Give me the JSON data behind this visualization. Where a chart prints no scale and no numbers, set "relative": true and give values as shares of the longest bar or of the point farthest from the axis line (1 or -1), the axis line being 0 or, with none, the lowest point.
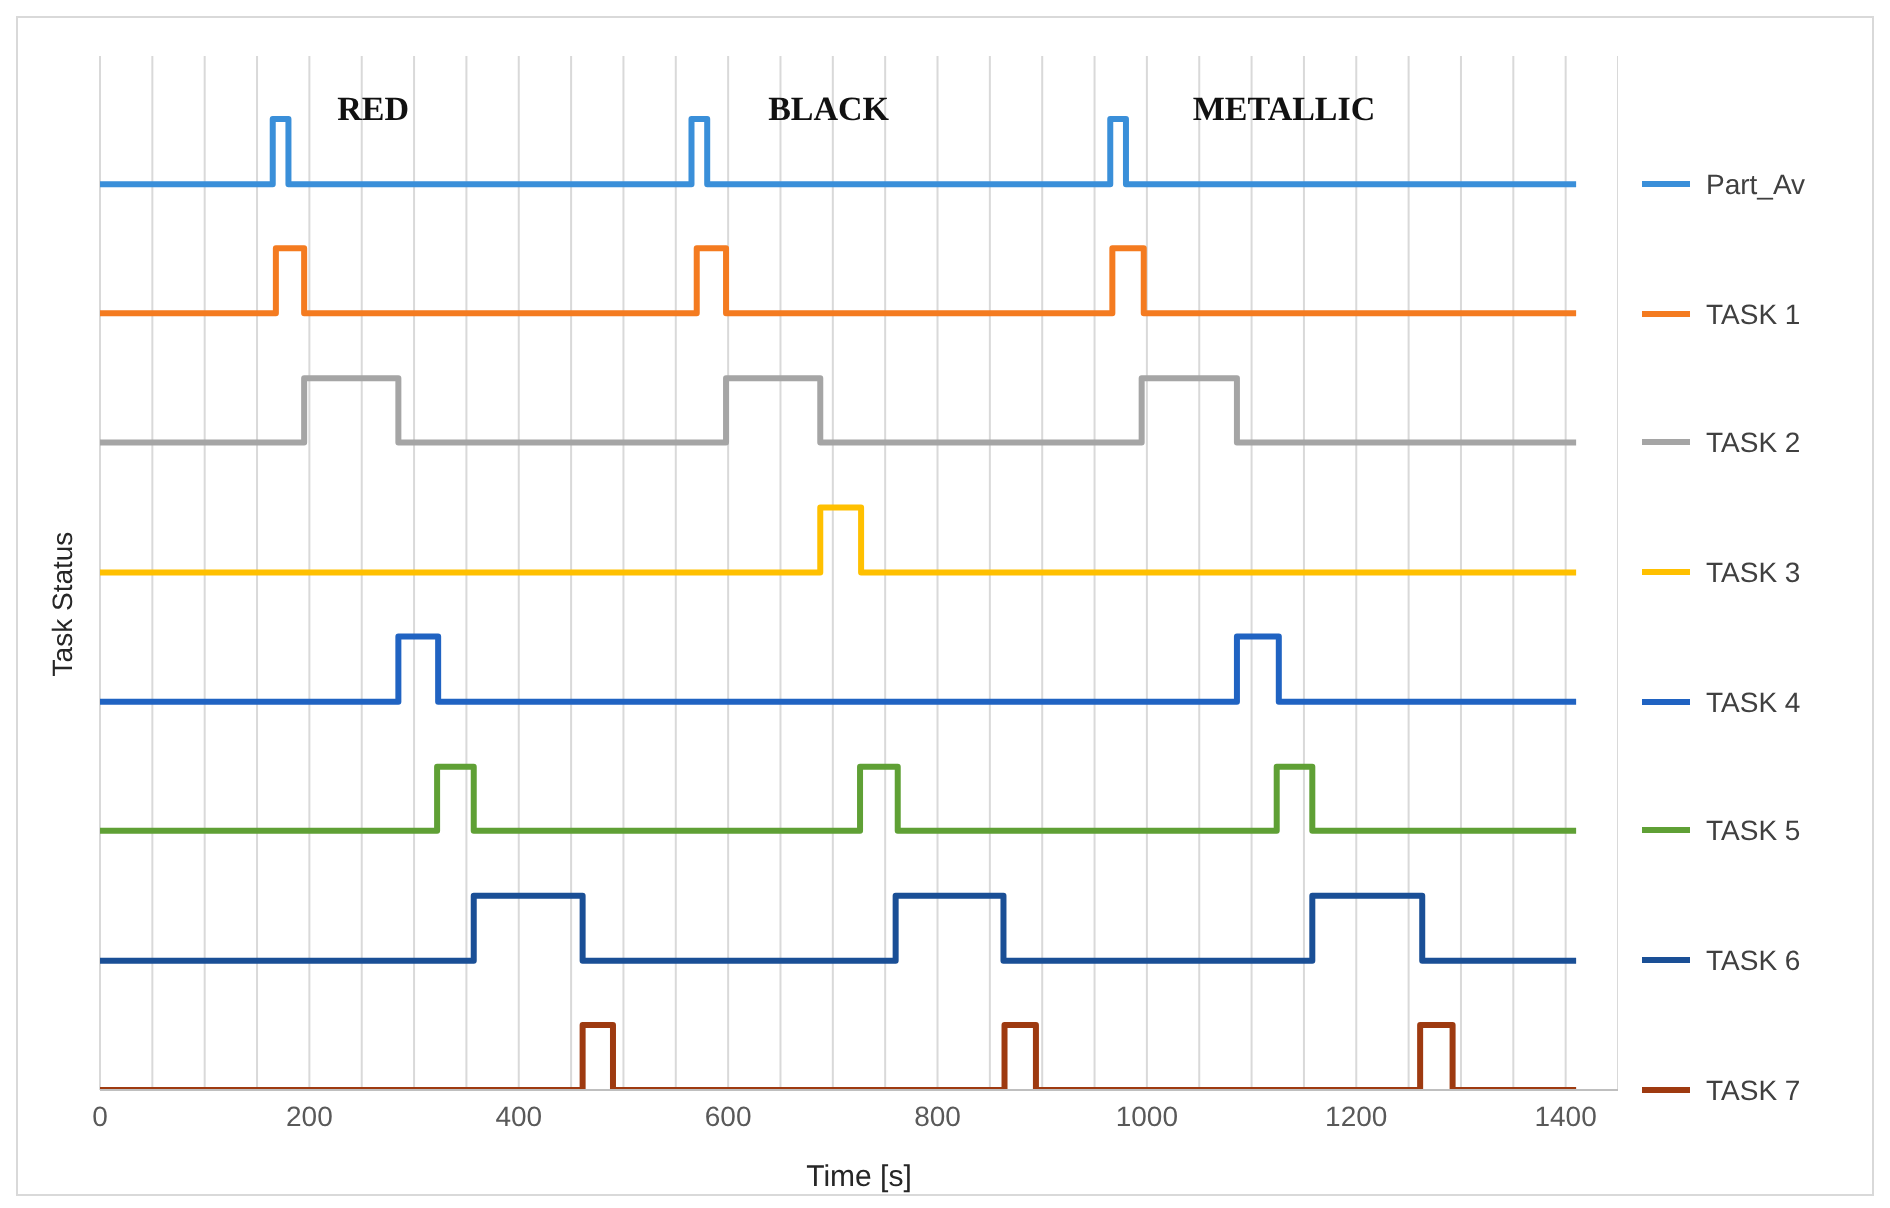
{
  "chart_data": {
    "type": "step",
    "relative": true,
    "xlabel": "Time [s]",
    "ylabel": "Task Status",
    "xlim": [
      0,
      1450
    ],
    "xticks": [
      0,
      {
        "value": 50,
        "label": null
      },
      {
        "value": 100,
        "label": null
      },
      {
        "value": 150,
        "label": null
      },
      200,
      {
        "value": 250,
        "label": null
      },
      {
        "value": 300,
        "label": null
      },
      {
        "value": 350,
        "label": null
      },
      400,
      {
        "value": 450,
        "label": null
      },
      {
        "value": 500,
        "label": null
      },
      {
        "value": 550,
        "label": null
      },
      600,
      {
        "value": 650,
        "label": null
      },
      {
        "value": 700,
        "label": null
      },
      {
        "value": 750,
        "label": null
      },
      800,
      {
        "value": 850,
        "label": null
      },
      {
        "value": 900,
        "label": null
      },
      {
        "value": 950,
        "label": null
      },
      1000,
      {
        "value": 1050,
        "label": null
      },
      {
        "value": 1100,
        "label": null
      },
      {
        "value": 1150,
        "label": null
      },
      1200,
      {
        "value": 1250,
        "label": null
      },
      {
        "value": 1300,
        "label": null
      },
      {
        "value": 1350,
        "label": null
      },
      1400,
      {
        "value": 1450,
        "label": null
      }
    ],
    "grid": "x",
    "legend": "right",
    "marker": "none",
    "line_style": "solid",
    "annotations": [
      "RED",
      "BLACK",
      "METALLIC"
    ],
    "series": [
      {
        "name": "Part_Av",
        "color": "#3a8fd9",
        "x": [
          0,
          165,
          180,
          565,
          580,
          965,
          980,
          1410
        ],
        "values": [
          0.933,
          1,
          0.933,
          1,
          0.933,
          1,
          0.933,
          0.933
        ]
      },
      {
        "name": "TASK 1",
        "color": "#f47b20",
        "x": [
          0,
          168,
          195,
          570,
          598,
          967,
          997,
          1410
        ],
        "values": [
          0.8,
          0.867,
          0.8,
          0.867,
          0.8,
          0.867,
          0.8,
          0.8
        ]
      },
      {
        "name": "TASK 2",
        "color": "#a5a5a5",
        "x": [
          0,
          195,
          285,
          598,
          688,
          995,
          1086,
          1410
        ],
        "values": [
          0.667,
          0.733,
          0.667,
          0.733,
          0.667,
          0.733,
          0.667,
          0.667
        ]
      },
      {
        "name": "TASK 3",
        "color": "#ffc000",
        "x": [
          0,
          688,
          727,
          1410
        ],
        "values": [
          0.533,
          0.6,
          0.533,
          0.533
        ]
      },
      {
        "name": "TASK 4",
        "color": "#2063c2",
        "x": [
          0,
          285,
          323,
          1086,
          1126,
          1410
        ],
        "values": [
          0.4,
          0.467,
          0.4,
          0.467,
          0.4,
          0.4
        ]
      },
      {
        "name": "TASK 5",
        "color": "#5fa035",
        "x": [
          0,
          322,
          357,
          726,
          762,
          1124,
          1158,
          1410
        ],
        "values": [
          0.267,
          0.333,
          0.267,
          0.333,
          0.267,
          0.333,
          0.267,
          0.267
        ]
      },
      {
        "name": "TASK 6",
        "color": "#1a4f96",
        "x": [
          0,
          357,
          461,
          760,
          863,
          1158,
          1263,
          1410
        ],
        "values": [
          0.133,
          0.2,
          0.133,
          0.2,
          0.133,
          0.2,
          0.133,
          0.133
        ]
      },
      {
        "name": "TASK 7",
        "color": "#9e3a10",
        "x": [
          0,
          461,
          490,
          864,
          894,
          1261,
          1292,
          1410
        ],
        "values": [
          0,
          0.067,
          0,
          0.067,
          0,
          0.067,
          0,
          0
        ]
      }
    ]
  }
}
